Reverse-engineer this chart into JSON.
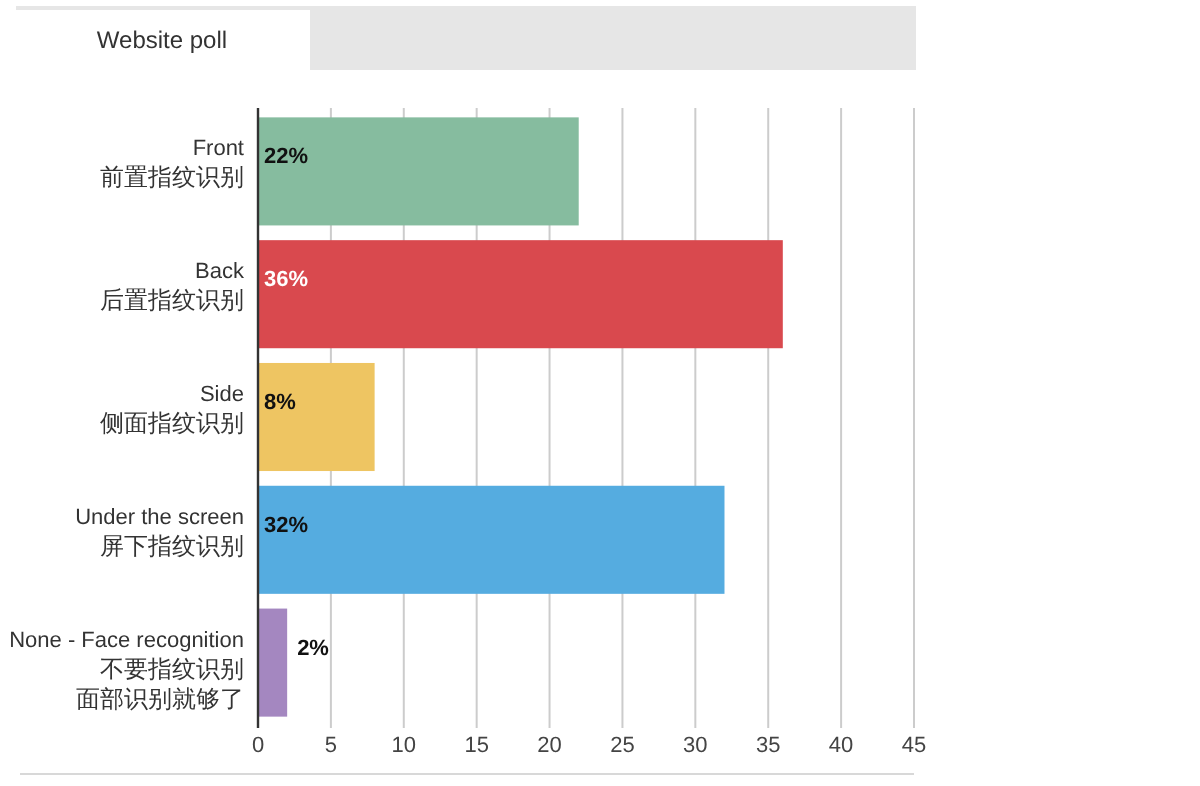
{
  "chart_data": {
    "type": "bar",
    "orientation": "horizontal",
    "title": "Website poll",
    "categories": [
      "Front\n前置指纹识别",
      "Back\n后置指纹识别",
      "Side\n侧面指纹识别",
      "Under the screen\n屏下指纹识别",
      "None - Face recognition\n不要指纹识别面部识别就够了"
    ],
    "values": [
      22,
      36,
      8,
      32,
      2
    ],
    "colors": [
      "#86bc9f",
      "#d9494e",
      "#eec562",
      "#55ace0",
      "#a487c0"
    ],
    "value_labels": [
      "22%",
      "36%",
      "8%",
      "32%",
      "2%"
    ],
    "xlim": [
      0,
      45
    ],
    "xticks": [
      0,
      5,
      10,
      15,
      20,
      25,
      30,
      35,
      40,
      45
    ],
    "grid": "x"
  }
}
